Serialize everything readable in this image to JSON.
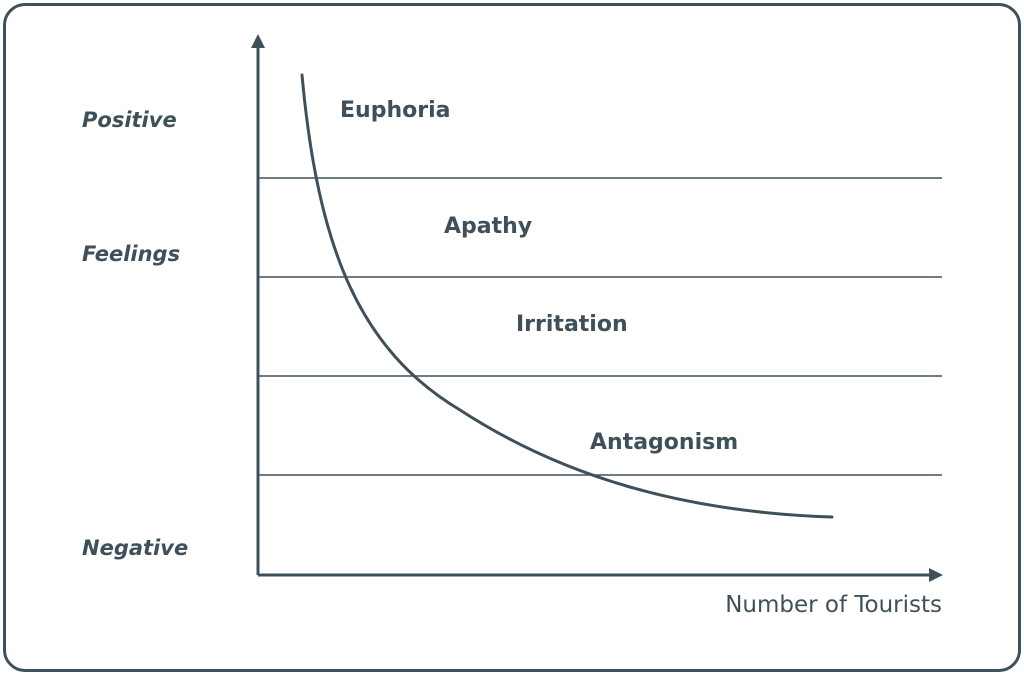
{
  "y_axis": {
    "top_label": "Positive",
    "middle_label": "Feelings",
    "bottom_label": "Negative"
  },
  "x_axis": {
    "label": "Number of Tourists"
  },
  "zones": [
    {
      "label": "Euphoria"
    },
    {
      "label": "Apathy"
    },
    {
      "label": "Irritation"
    },
    {
      "label": "Antagonism"
    }
  ],
  "colors": {
    "ink": "#3f505b",
    "background": "#ffffff"
  }
}
